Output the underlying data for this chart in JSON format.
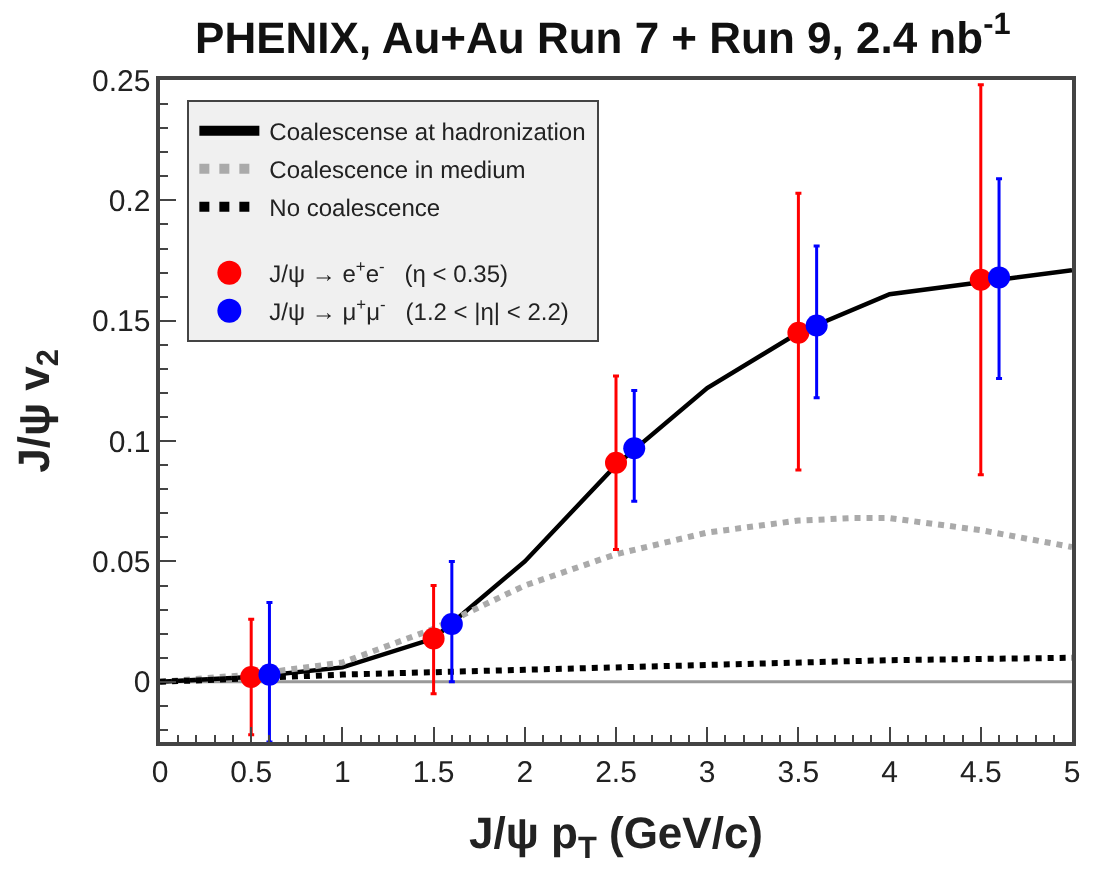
{
  "chart_data": {
    "type": "line",
    "title": "PHENIX, Au+Au Run 7 + Run 9, 2.4 nb$^{-1}$",
    "xlabel": "J/ψ p$_{T}$ (GeV/c)",
    "ylabel": "J/ψ v$_{2}$",
    "xlim": [
      0,
      5
    ],
    "xticks": [
      0,
      0.5,
      1,
      1.5,
      2,
      2.5,
      3,
      3.5,
      4,
      4.5,
      5
    ],
    "ylim": [
      -0.025,
      0.25
    ],
    "yticks": [
      0,
      0.05,
      0.1,
      0.15,
      0.2,
      0.25
    ],
    "grid": false,
    "legend": "top left",
    "ref_lines": [
      {
        "axis": "y",
        "value": 0,
        "color": "#999999"
      }
    ],
    "series": [
      {
        "name": "Coalescense at hadronization",
        "color": "#000000",
        "line_style": "solid",
        "marker": "none",
        "x": [
          0,
          0.5,
          1,
          1.5,
          2,
          2.5,
          3,
          3.5,
          4,
          4.5,
          5
        ],
        "values": [
          0,
          0.002,
          0.006,
          0.018,
          0.05,
          0.09,
          0.122,
          0.145,
          0.161,
          0.166,
          0.171
        ]
      },
      {
        "name": "Coalescence in medium",
        "color": "#aaaaaa",
        "line_style": "dotted",
        "marker": "none",
        "x": [
          0,
          0.5,
          1,
          1.5,
          2,
          2.5,
          3,
          3.5,
          3.8,
          4,
          4.5,
          5
        ],
        "values": [
          0,
          0.003,
          0.008,
          0.022,
          0.04,
          0.053,
          0.062,
          0.067,
          0.068,
          0.068,
          0.063,
          0.056
        ]
      },
      {
        "name": "No coalescence",
        "color": "#000000",
        "line_style": "dotted",
        "marker": "none",
        "x": [
          0,
          1,
          2,
          3,
          4,
          5
        ],
        "values": [
          0,
          0.003,
          0.005,
          0.007,
          0.009,
          0.01
        ]
      },
      {
        "name": "J/ψ → e$^{+}$e$^{-}$   (η < 0.35)",
        "type": "scatter",
        "color": "#ff0000",
        "marker": "circle",
        "x": [
          0.5,
          1.5,
          2.5,
          3.5,
          4.5
        ],
        "values": [
          0.002,
          0.018,
          0.091,
          0.145,
          0.167
        ],
        "errors": [
          [
            -0.022,
            0.026
          ],
          [
            -0.005,
            0.04
          ],
          [
            0.055,
            0.127
          ],
          [
            0.088,
            0.203
          ],
          [
            0.086,
            0.248
          ]
        ]
      },
      {
        "name": "J/ψ → μ$^{+}$μ$^{-}$   (1.2 < |η| < 2.2)",
        "type": "scatter",
        "color": "#0000ff",
        "marker": "circle",
        "x": [
          0.6,
          1.6,
          2.6,
          3.6,
          4.6
        ],
        "values": [
          0.003,
          0.024,
          0.097,
          0.148,
          0.168
        ],
        "errors": [
          [
            -0.025,
            0.033
          ],
          [
            0,
            0.05
          ],
          [
            0.075,
            0.121
          ],
          [
            0.118,
            0.181
          ],
          [
            0.126,
            0.209
          ]
        ]
      }
    ]
  }
}
